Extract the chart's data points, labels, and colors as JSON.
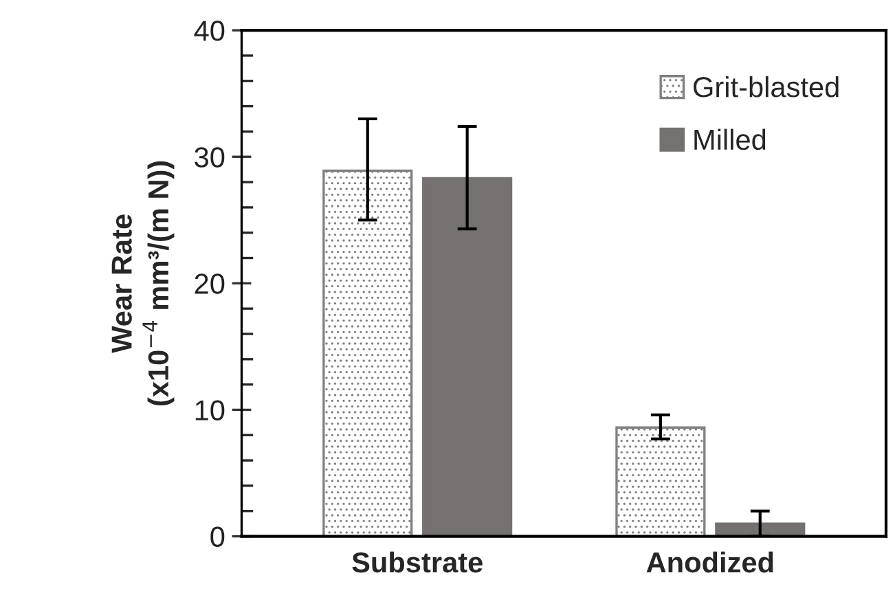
{
  "chart_data": {
    "type": "bar",
    "ylabel": "Wear Rate\n(x10$^{−4}$ mm³/(m N))",
    "categories": [
      "Substrate",
      "Anodized"
    ],
    "series": [
      {
        "name": "Grit-blasted",
        "color": "#808080",
        "values": [
          28.9,
          8.6
        ],
        "errors": [
          [
            25.0,
            33.0
          ],
          [
            7.7,
            9.6
          ]
        ]
      },
      {
        "name": "Milled",
        "color": "#767171",
        "values": [
          28.3,
          1.0
        ],
        "errors": [
          [
            24.3,
            32.4
          ],
          [
            0,
            2.0
          ]
        ]
      }
    ],
    "ylim": [
      0,
      40
    ],
    "yticks": [
      0,
      10,
      20,
      30,
      40
    ],
    "grid": false,
    "legend": "top right"
  }
}
